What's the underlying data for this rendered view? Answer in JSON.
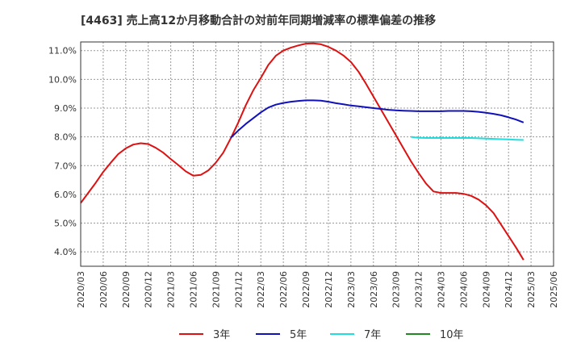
{
  "chart_data": {
    "type": "line",
    "title": "[4463]  売上高12か月移動合計の対前年同期増減率の標準偏差の推移",
    "xlabel": "",
    "ylabel": "",
    "ylim": [
      3.5,
      11.3
    ],
    "y_ticks": [
      "4.0%",
      "5.0%",
      "6.0%",
      "7.0%",
      "8.0%",
      "9.0%",
      "10.0%",
      "11.0%"
    ],
    "y_tick_values": [
      4.0,
      5.0,
      6.0,
      7.0,
      8.0,
      9.0,
      10.0,
      11.0
    ],
    "x_ticks": [
      "2020/03",
      "2020/06",
      "2020/09",
      "2020/12",
      "2021/03",
      "2021/06",
      "2021/09",
      "2021/12",
      "2022/03",
      "2022/06",
      "2022/09",
      "2022/12",
      "2023/03",
      "2023/06",
      "2023/09",
      "2023/12",
      "2024/03",
      "2024/06",
      "2024/09",
      "2024/12",
      "2025/03",
      "2025/06"
    ],
    "grid": true,
    "legend_position": "bottom",
    "series": [
      {
        "name": "3年",
        "color": "#dd1111",
        "points": [
          [
            "2020/03",
            5.7
          ],
          [
            "2020/04",
            6.05
          ],
          [
            "2020/05",
            6.4
          ],
          [
            "2020/06",
            6.78
          ],
          [
            "2020/07",
            7.1
          ],
          [
            "2020/08",
            7.4
          ],
          [
            "2020/09",
            7.6
          ],
          [
            "2020/10",
            7.73
          ],
          [
            "2020/11",
            7.78
          ],
          [
            "2020/12",
            7.75
          ],
          [
            "2021/01",
            7.62
          ],
          [
            "2021/02",
            7.45
          ],
          [
            "2021/03",
            7.23
          ],
          [
            "2021/04",
            7.02
          ],
          [
            "2021/05",
            6.8
          ],
          [
            "2021/06",
            6.65
          ],
          [
            "2021/07",
            6.68
          ],
          [
            "2021/08",
            6.83
          ],
          [
            "2021/09",
            7.1
          ],
          [
            "2021/10",
            7.45
          ],
          [
            "2021/11",
            7.95
          ],
          [
            "2021/12",
            8.5
          ],
          [
            "2022/01",
            9.1
          ],
          [
            "2022/02",
            9.62
          ],
          [
            "2022/03",
            10.05
          ],
          [
            "2022/04",
            10.5
          ],
          [
            "2022/05",
            10.82
          ],
          [
            "2022/06",
            11.0
          ],
          [
            "2022/07",
            11.1
          ],
          [
            "2022/08",
            11.18
          ],
          [
            "2022/09",
            11.24
          ],
          [
            "2022/10",
            11.25
          ],
          [
            "2022/11",
            11.22
          ],
          [
            "2022/12",
            11.13
          ],
          [
            "2023/01",
            11.0
          ],
          [
            "2023/02",
            10.83
          ],
          [
            "2023/03",
            10.6
          ],
          [
            "2023/04",
            10.27
          ],
          [
            "2023/05",
            9.85
          ],
          [
            "2023/06",
            9.4
          ],
          [
            "2023/07",
            8.95
          ],
          [
            "2023/08",
            8.5
          ],
          [
            "2023/09",
            8.05
          ],
          [
            "2023/10",
            7.6
          ],
          [
            "2023/11",
            7.15
          ],
          [
            "2023/12",
            6.75
          ],
          [
            "2024/01",
            6.38
          ],
          [
            "2024/02",
            6.1
          ],
          [
            "2024/03",
            6.05
          ],
          [
            "2024/04",
            6.05
          ],
          [
            "2024/05",
            6.05
          ],
          [
            "2024/06",
            6.02
          ],
          [
            "2024/07",
            5.95
          ],
          [
            "2024/08",
            5.82
          ],
          [
            "2024/09",
            5.62
          ],
          [
            "2024/10",
            5.35
          ],
          [
            "2024/11",
            4.95
          ],
          [
            "2024/12",
            4.55
          ],
          [
            "2025/01",
            4.15
          ],
          [
            "2025/02",
            3.72
          ]
        ]
      },
      {
        "name": "5年",
        "color": "#1111bb",
        "points": [
          [
            "2021/11",
            7.97
          ],
          [
            "2021/12",
            8.22
          ],
          [
            "2022/01",
            8.45
          ],
          [
            "2022/02",
            8.65
          ],
          [
            "2022/03",
            8.85
          ],
          [
            "2022/04",
            9.02
          ],
          [
            "2022/05",
            9.12
          ],
          [
            "2022/06",
            9.18
          ],
          [
            "2022/07",
            9.22
          ],
          [
            "2022/08",
            9.25
          ],
          [
            "2022/09",
            9.27
          ],
          [
            "2022/10",
            9.27
          ],
          [
            "2022/11",
            9.26
          ],
          [
            "2022/12",
            9.22
          ],
          [
            "2023/01",
            9.17
          ],
          [
            "2023/02",
            9.13
          ],
          [
            "2023/03",
            9.09
          ],
          [
            "2023/04",
            9.06
          ],
          [
            "2023/05",
            9.03
          ],
          [
            "2023/06",
            9.0
          ],
          [
            "2023/07",
            8.97
          ],
          [
            "2023/08",
            8.94
          ],
          [
            "2023/09",
            8.92
          ],
          [
            "2023/10",
            8.91
          ],
          [
            "2023/11",
            8.9
          ],
          [
            "2023/12",
            8.89
          ],
          [
            "2024/01",
            8.89
          ],
          [
            "2024/02",
            8.89
          ],
          [
            "2024/03",
            8.89
          ],
          [
            "2024/04",
            8.9
          ],
          [
            "2024/05",
            8.9
          ],
          [
            "2024/06",
            8.9
          ],
          [
            "2024/07",
            8.89
          ],
          [
            "2024/08",
            8.87
          ],
          [
            "2024/09",
            8.84
          ],
          [
            "2024/10",
            8.8
          ],
          [
            "2024/11",
            8.75
          ],
          [
            "2024/12",
            8.68
          ],
          [
            "2025/01",
            8.6
          ],
          [
            "2025/02",
            8.5
          ]
        ]
      },
      {
        "name": "7年",
        "color": "#22dddd",
        "points": [
          [
            "2023/11",
            8.0
          ],
          [
            "2023/12",
            7.97
          ],
          [
            "2024/01",
            7.96
          ],
          [
            "2024/02",
            7.96
          ],
          [
            "2024/03",
            7.96
          ],
          [
            "2024/04",
            7.96
          ],
          [
            "2024/05",
            7.96
          ],
          [
            "2024/06",
            7.96
          ],
          [
            "2024/07",
            7.96
          ],
          [
            "2024/08",
            7.95
          ],
          [
            "2024/09",
            7.94
          ],
          [
            "2024/10",
            7.93
          ],
          [
            "2024/11",
            7.92
          ],
          [
            "2024/12",
            7.91
          ],
          [
            "2025/01",
            7.9
          ],
          [
            "2025/02",
            7.89
          ]
        ]
      },
      {
        "name": "10年",
        "color": "#228822",
        "points": []
      }
    ]
  }
}
